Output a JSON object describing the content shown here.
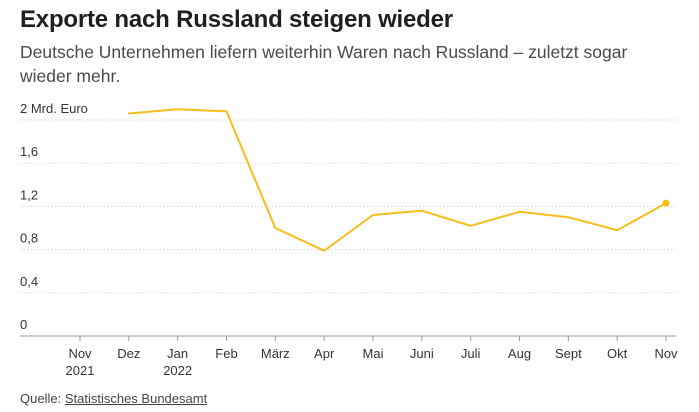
{
  "title": "Exporte nach Russland steigen wieder",
  "subtitle": "Deutsche Unternehmen liefern weiterhin Waren nach Russland – zuletzt sogar wieder mehr.",
  "source": {
    "label": "Quelle:",
    "link_text": "Statistisches Bundesamt"
  },
  "colors": {
    "line": "#f7bd1b",
    "grid": "#d5d5d5",
    "axis": "#999999",
    "text": "#333333"
  },
  "chart_data": {
    "type": "line",
    "y_unit_label": "Mrd. Euro",
    "ylim": [
      0,
      2
    ],
    "y_ticks": [
      "0",
      "0,4",
      "0,8",
      "1,2",
      "1,6",
      "2"
    ],
    "y_tick_values": [
      0,
      0.4,
      0.8,
      1.2,
      1.6,
      2
    ],
    "categories": [
      [
        "Nov",
        "2021"
      ],
      [
        "Dez",
        ""
      ],
      [
        "Jan",
        "2022"
      ],
      [
        "Feb",
        ""
      ],
      [
        "März",
        ""
      ],
      [
        "Apr",
        ""
      ],
      [
        "Mai",
        ""
      ],
      [
        "Juni",
        ""
      ],
      [
        "Juli",
        ""
      ],
      [
        "Aug",
        ""
      ],
      [
        "Sept",
        ""
      ],
      [
        "Okt",
        ""
      ],
      [
        "Nov",
        ""
      ]
    ],
    "series": [
      {
        "values": [
          null,
          2.06,
          2.1,
          2.08,
          1.0,
          0.79,
          1.12,
          1.16,
          1.02,
          1.15,
          1.1,
          0.98,
          1.23
        ]
      }
    ],
    "grid": true,
    "end_marker": true
  }
}
